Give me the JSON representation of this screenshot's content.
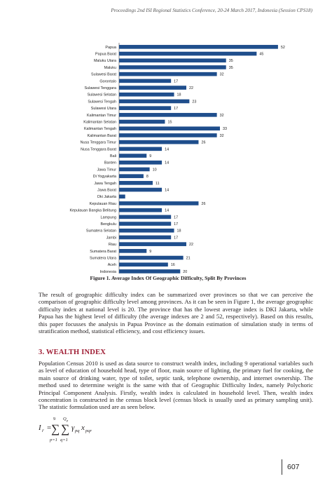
{
  "header": {
    "running_title": "Proceedings 2nd ISI Regional Statistics Conference, 20-24 March 2017, Indonesia (Session CPS18)"
  },
  "chart_data": {
    "type": "bar",
    "orientation": "horizontal",
    "categories": [
      "Papua",
      "Papua Barat",
      "Maluku Utara",
      "Maluku",
      "Sulawesi Barat",
      "Gorontalo",
      "Sulawesi Tenggara",
      "Sulawesi Selatan",
      "Sulawesi Tengah",
      "Sulawesi Utara",
      "Kalimantan Timur",
      "Kalimantan Selatan",
      "Kalimantan Tengah",
      "Kalimantan Barat",
      "Nusa Tenggara Timur",
      "Nusa Tenggara Barat",
      "Bali",
      "Banten",
      "Jawa Timur",
      "Di Yogyakarta",
      "Jawa Tengah",
      "Jawa Barat",
      "Dki Jakarta",
      "Kepulauan Riau",
      "Kepulauan Bangka Belitung",
      "Lampung",
      "Bengkulu",
      "Sumatera Selatan",
      "Jambi",
      "Riau",
      "Sumatera Barat",
      "Sumatera Utara",
      "Aceh",
      "Indonesia"
    ],
    "values": [
      52,
      45,
      35,
      35,
      32,
      17,
      22,
      18,
      23,
      17,
      32,
      15,
      33,
      32,
      26,
      14,
      9,
      14,
      10,
      8,
      11,
      14,
      2,
      26,
      14,
      17,
      17,
      18,
      17,
      22,
      9,
      21,
      16,
      20
    ],
    "value_labels": [
      "52",
      "45",
      "35",
      "35",
      "32",
      "17",
      "22",
      "18",
      "23",
      "17",
      "32",
      "15",
      "33",
      "32",
      "26",
      "14",
      "9",
      "14",
      "10",
      "8",
      "11",
      "14",
      "",
      "26",
      "14",
      "17",
      "17",
      "18",
      "17",
      "22",
      "9",
      "21",
      "16",
      "20"
    ],
    "xlim": [
      0,
      55
    ],
    "grid": false,
    "legend": "none",
    "bar_color": "#1f4e8c"
  },
  "figure": {
    "caption": "Figure 1. Average Index Of Geographic Difficulty, Split By Provinces"
  },
  "body": {
    "paragraph_1": "The result of geographic difficulty index can be summarized over provinces so that we can perceive the comparison of geographic difficulty level among provinces. As it can be seen in Figure 1, the average geographic difficulty index at national level is 20. The province that has the lowest average index is DKI Jakarta, while Papua has the highest level of difficulty (the average indexes are 2 and 52, respectively). Based on this results, this paper focusses the analysis in Papua Province as the domain estimation of simulation study in terms of stratification method, statistical efficiency, and cost efficiency issues.",
    "section_heading": "3. WEALTH INDEX",
    "paragraph_2": "Population Census 2010 is used as data source to construct wealth index, including 9 operational variables such as level of education of household head, type of floor, main source of lighting, the primary fuel for cooking, the main source of drinking water, type of toilet, septic tank, telephone ownership, and internet ownership. The method used to determine weight is the same with that of Geographic Difficulty Index, namely Polychoric Principal Component Analysis. Firstly, wealth index is calculated in household level. Then, wealth index concentration is constructed in the census block level (census block is usually used as primary sampling unit). The statistic formulation used are as seen below."
  },
  "formula": {
    "lhs_symbol": "I",
    "lhs_subscript": "r",
    "equals": "=",
    "outer_sum_upper": "9",
    "outer_sum_lower": "p=1",
    "inner_sum_upper": "Q",
    "inner_sum_upper_sub": "p",
    "inner_sum_lower": "q=1",
    "sum_symbol": "∑",
    "term_1": "γ",
    "term_1_sub": "pq",
    "term_2": "x",
    "term_2_sub": "pqr"
  },
  "footer": {
    "page_number": "607"
  }
}
